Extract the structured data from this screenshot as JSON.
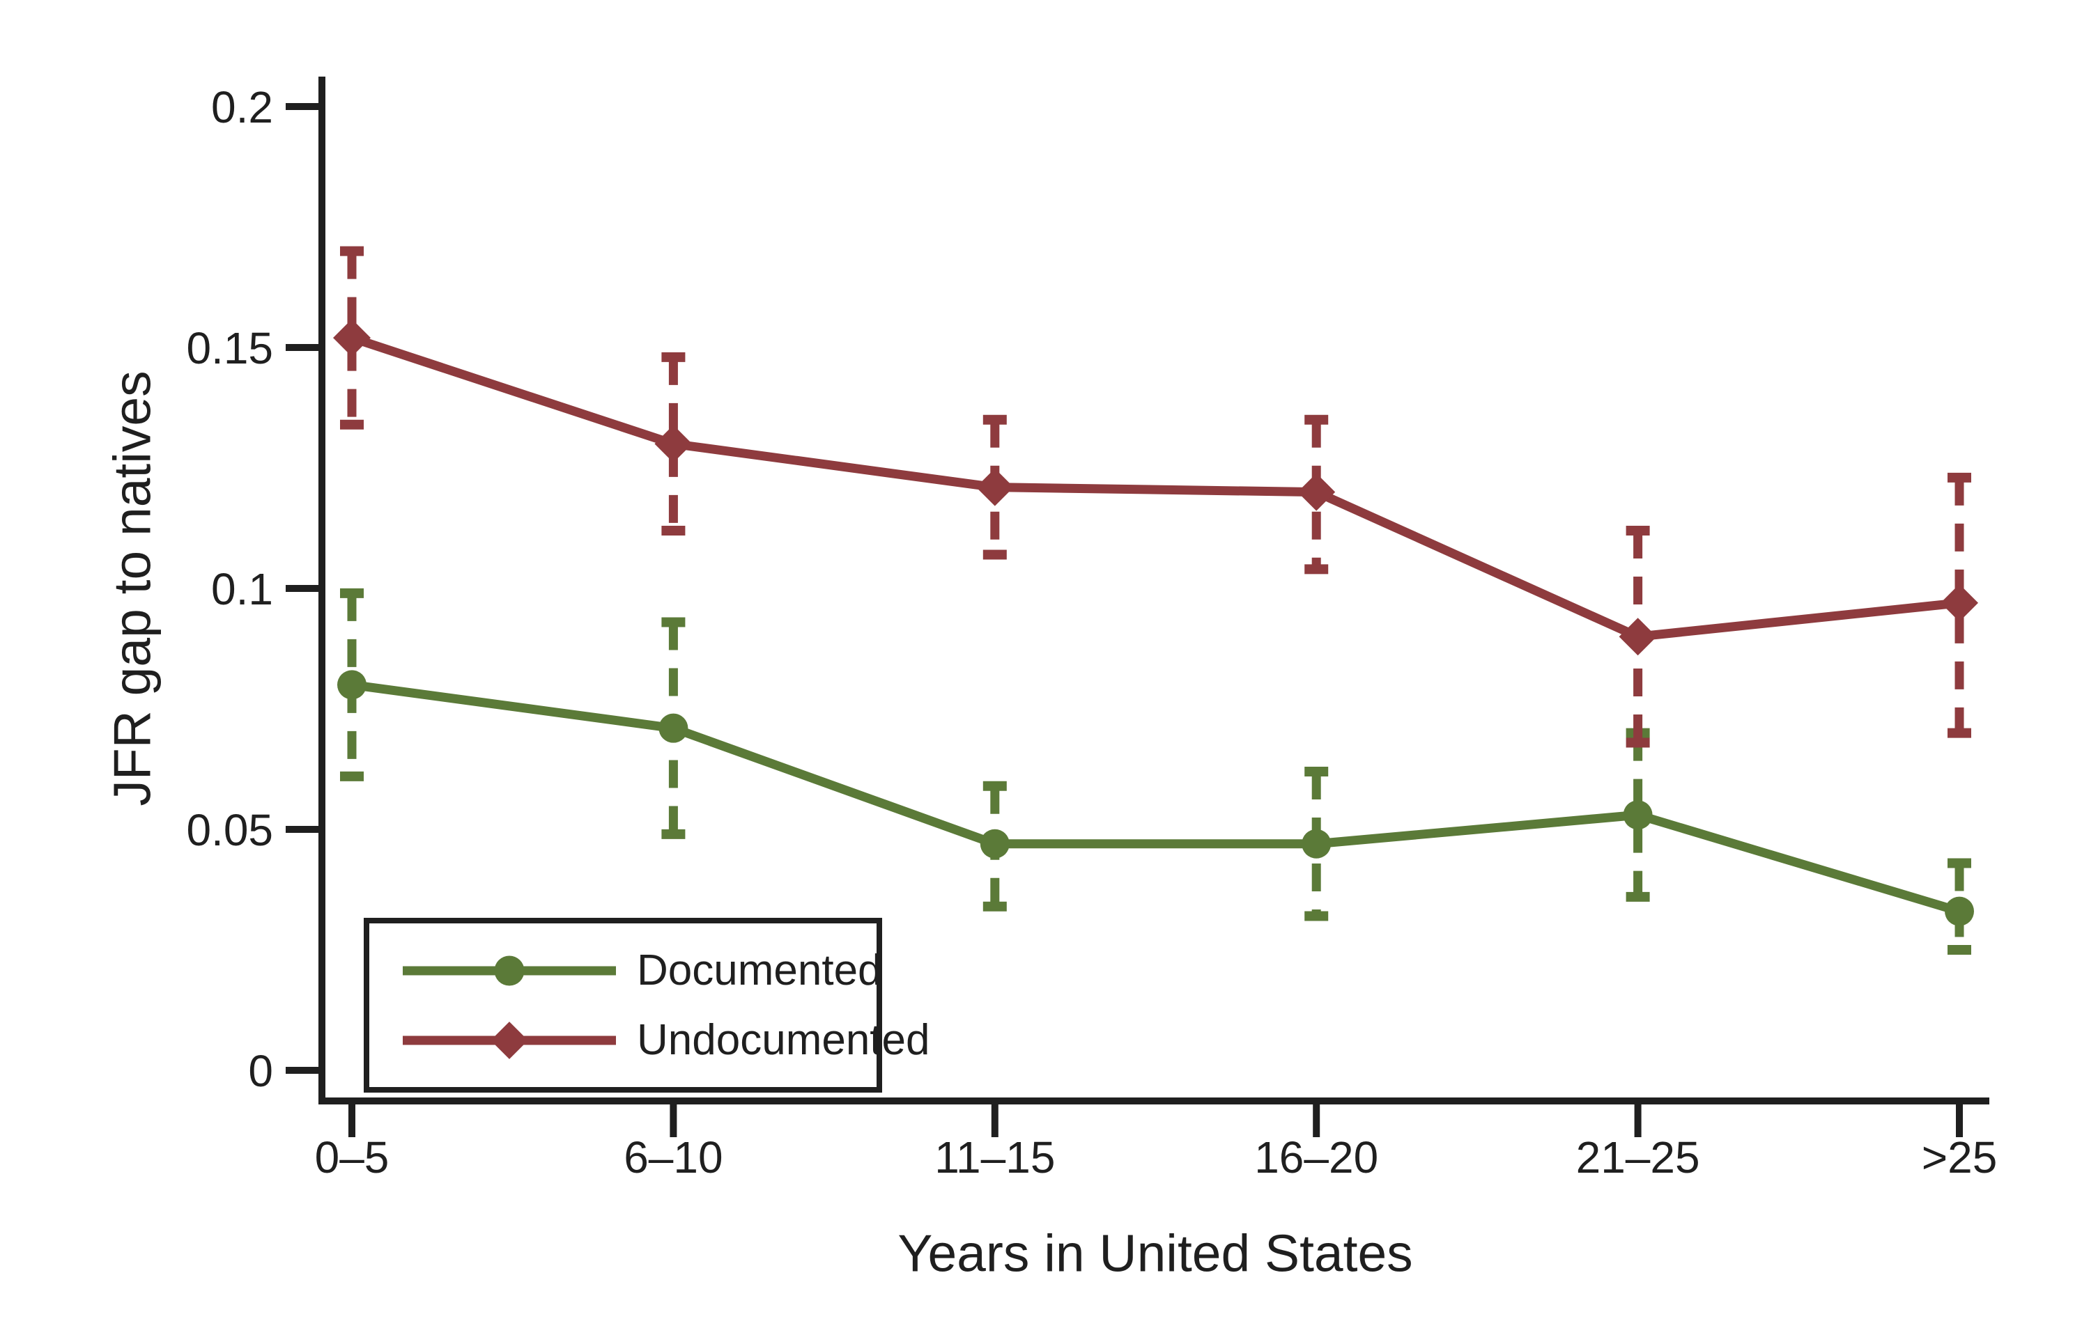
{
  "figure": {
    "background_color": "#ffffff",
    "text_color": "#1f1f1f"
  },
  "chart_data": {
    "type": "line",
    "title": "",
    "xlabel": "Years in United States",
    "ylabel": "JFR gap to natives",
    "categories": [
      "0–5",
      "6–10",
      "11–15",
      "16–20",
      "21–25",
      ">25"
    ],
    "y_ticks": {
      "values": [
        0,
        0.05,
        0.1,
        0.15,
        0.2
      ],
      "labels": [
        "0",
        "0.05",
        "0.1",
        "0.15",
        "0.2"
      ]
    },
    "ylim": [
      0,
      0.206
    ],
    "grid": false,
    "legend_position": "inside-bottom-left",
    "error_bars": "dashed vertical lines with end caps (confidence intervals)",
    "series": [
      {
        "name": "Documented",
        "color": "#5b7a38",
        "marker": "circle",
        "values": [
          0.08,
          0.071,
          0.047,
          0.047,
          0.053,
          0.033
        ],
        "ci_low": [
          0.061,
          0.049,
          0.034,
          0.032,
          0.036,
          0.025
        ],
        "ci_high": [
          0.099,
          0.093,
          0.059,
          0.062,
          0.07,
          0.043
        ]
      },
      {
        "name": "Undocumented",
        "color": "#8e3b3e",
        "marker": "diamond",
        "values": [
          0.152,
          0.13,
          0.121,
          0.12,
          0.09,
          0.097
        ],
        "ci_low": [
          0.134,
          0.112,
          0.107,
          0.104,
          0.068,
          0.07
        ],
        "ci_high": [
          0.17,
          0.148,
          0.135,
          0.135,
          0.112,
          0.123
        ]
      }
    ]
  }
}
